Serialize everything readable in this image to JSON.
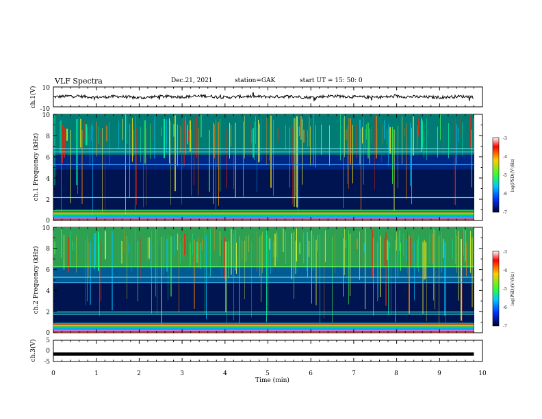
{
  "header": {
    "title": "VLF Spectra",
    "date": "Dec.21, 2021",
    "station": "station=GAK",
    "start": "start  UT =   15: 50: 0"
  },
  "colorbar": {
    "label": "log(PSD)(V²/Hz)",
    "ticks": [
      "-3",
      "-4",
      "-5",
      "-6",
      "-7"
    ],
    "stops": [
      "#ffffff",
      "#ff0000",
      "#ffcc00",
      "#33ff33",
      "#00c8ff",
      "#0033ff",
      "#000033"
    ]
  },
  "chart_data": [
    {
      "type": "line",
      "ylabel": "ch.1(V)",
      "xlim": [
        0,
        10
      ],
      "ylim": [
        -10,
        10
      ],
      "yticks": [
        "10",
        "-10"
      ],
      "x": [
        0,
        0.5,
        1,
        1.5,
        2,
        2.5,
        3,
        3.5,
        4,
        4.5,
        5,
        5.5,
        6,
        6.5,
        7,
        7.5,
        8,
        8.5,
        9,
        9.5,
        9.8
      ],
      "values": [
        0,
        1,
        -0.5,
        0.5,
        -1,
        0.5,
        0,
        1,
        -0.5,
        0.5,
        0,
        0.5,
        -0.5,
        1,
        0,
        -0.5,
        0.5,
        0,
        -0.5,
        0.5,
        0
      ],
      "color": "#000000"
    },
    {
      "type": "heatmap",
      "ylabel": "ch.1 Frequency (kHz)",
      "xlim": [
        0,
        10
      ],
      "ylim": [
        0,
        10
      ],
      "yticks": [
        "0",
        "2",
        "4",
        "6",
        "8",
        "10"
      ],
      "data_extent_x": [
        0,
        9.8
      ],
      "colorbar_range": [
        -7,
        -3
      ]
    },
    {
      "type": "heatmap",
      "ylabel": "ch.2 Frequency (kHz)",
      "xlim": [
        0,
        10
      ],
      "ylim": [
        0,
        10
      ],
      "yticks": [
        "0",
        "2",
        "4",
        "6",
        "8",
        "10"
      ],
      "data_extent_x": [
        0,
        9.8
      ],
      "colorbar_range": [
        -7,
        -3
      ]
    },
    {
      "type": "line",
      "ylabel": "ch.3(V)",
      "xlabel": "Time  (min)",
      "xlim": [
        0,
        10
      ],
      "ylim": [
        -5,
        5
      ],
      "yticks": [
        "5",
        "0",
        "-5"
      ],
      "xticks": [
        "0",
        "1",
        "2",
        "3",
        "4",
        "5",
        "6",
        "7",
        "8",
        "9",
        "10"
      ],
      "x": [
        0,
        9.8
      ],
      "values": [
        -1.5,
        -1.5
      ],
      "color": "#000000"
    }
  ]
}
